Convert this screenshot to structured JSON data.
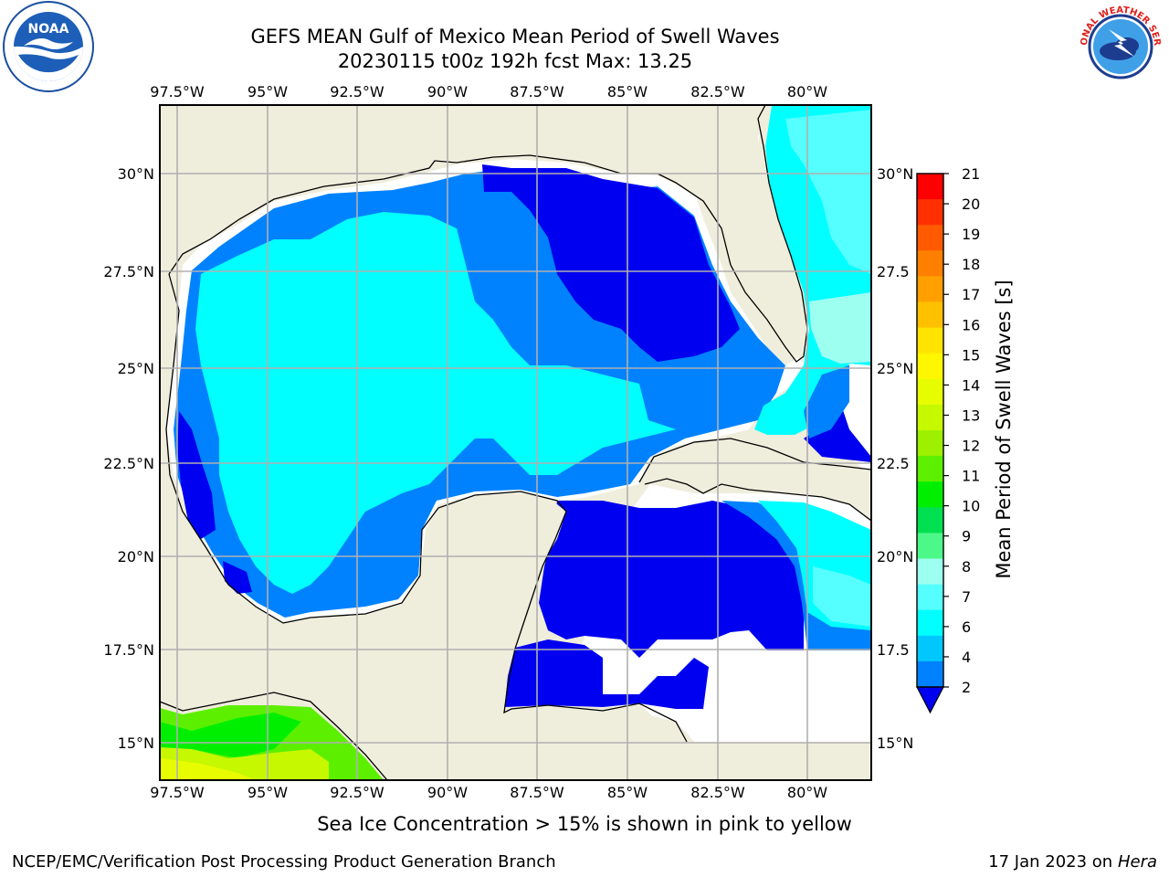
{
  "header": {
    "title_line1": "GEFS MEAN Gulf of Mexico Mean Period of Swell Waves",
    "title_line2": "20230115 t00z 192h fcst   Max: 13.25"
  },
  "logos": {
    "left": "noaa-logo",
    "right": "national-weather-service-logo"
  },
  "map": {
    "lon_ticks": [
      "97.5°W",
      "95°W",
      "92.5°W",
      "90°W",
      "87.5°W",
      "85°W",
      "82.5°W",
      "80°W"
    ],
    "lat_ticks_left": [
      "30°N",
      "27.5°N",
      "25°N",
      "22.5°N",
      "20°N",
      "17.5°N",
      "15°N"
    ],
    "lat_ticks_right": [
      "30°N",
      "27.5",
      "25°N",
      "22.5",
      "20°N",
      "17.5",
      "15°N"
    ],
    "colors": {
      "land": "#efeddc",
      "ocean_no_data": "#ffffff",
      "grid": "#b0b0b0"
    }
  },
  "colorbar": {
    "label": "Mean Period of Swell Waves [s]",
    "ticks": [
      "21",
      "20",
      "19",
      "18",
      "17",
      "16",
      "15",
      "14",
      "13",
      "12",
      "11",
      "10",
      "9",
      "8",
      "7",
      "6",
      "4",
      "2"
    ],
    "colors_top_to_bottom": [
      "#ff0000",
      "#ff3000",
      "#ff5a00",
      "#ff8000",
      "#ffa000",
      "#ffc000",
      "#ffe400",
      "#fff700",
      "#e8fc00",
      "#c6f800",
      "#9cf000",
      "#5cf000",
      "#00ef00",
      "#00e050",
      "#4cf888",
      "#9cfff0",
      "#55ffff",
      "#00ffff",
      "#00c8ff",
      "#0082ff"
    ],
    "under_color": "#0000f0"
  },
  "footer": {
    "footnote": "Sea Ice Concentration > 15% is shown in pink to yellow",
    "credit_left": "NCEP/EMC/Verification Post Processing Product Generation Branch",
    "credit_right_date": "17 Jan 2023 on",
    "credit_right_machine": "Hera"
  }
}
